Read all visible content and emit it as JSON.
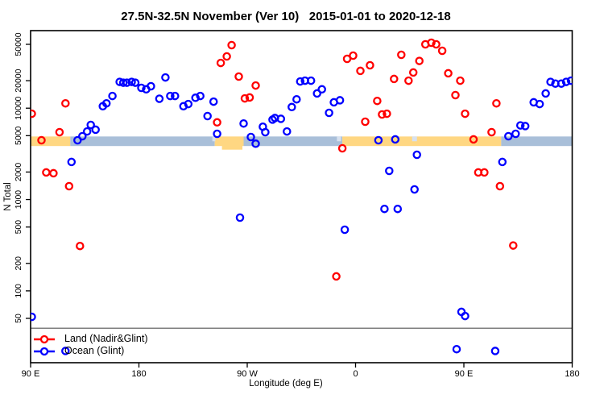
{
  "chart_data": {
    "type": "scatter",
    "title": "27.5N-32.5N November (Ver 10)   2015-01-01 to 2020-12-18",
    "xlabel": "Longitude (deg E)",
    "ylabel": "N Total",
    "x_axis": {
      "xlim": [
        90,
        540
      ],
      "note": "longitude in deg E increasing eastward from 90E, wrapping 180 -> 90W -> 0 -> 90E -> 180",
      "ticks": [
        {
          "lon": 90,
          "label": "90 E"
        },
        {
          "lon": 180,
          "label": "180"
        },
        {
          "lon": 270,
          "label": "90 W"
        },
        {
          "lon": 360,
          "label": "0"
        },
        {
          "lon": 450,
          "label": "90 E"
        },
        {
          "lon": 540,
          "label": "180"
        }
      ]
    },
    "y_axis": {
      "scale": "log10",
      "ticks": [
        50,
        100,
        200,
        500,
        1000,
        2000,
        5000,
        10000,
        20000,
        50000
      ],
      "range_approx": [
        16,
        70000
      ]
    },
    "reference_line": {
      "n_value": 39,
      "color": "#7f7f7f"
    },
    "band": {
      "description": "land/ocean strip drawn near N=5000",
      "n_top": 4900,
      "n_bottom": 3850,
      "land_color": "#FFD782",
      "ocean_color": "#A9BFD9",
      "coast_color": "#D7E1EF",
      "segments": [
        {
          "from": 90,
          "to": 123,
          "surface": "land"
        },
        {
          "from": 123,
          "to": 243,
          "surface": "ocean"
        },
        {
          "from": 243,
          "to": 267,
          "surface": "land"
        },
        {
          "from": 267,
          "to": 349,
          "surface": "ocean"
        },
        {
          "from": 349,
          "to": 481,
          "surface": "land"
        },
        {
          "from": 481,
          "to": 540,
          "surface": "ocean"
        }
      ],
      "south_blob": {
        "from": 249,
        "to": 266
      },
      "coast_marks": [
        {
          "from": 241,
          "to": 243.5
        },
        {
          "from": 344.5,
          "to": 348
        },
        {
          "from": 407,
          "to": 411
        }
      ]
    },
    "series": [
      {
        "name": "Land (Nadir&Glint)",
        "color": "#FF0000",
        "points": [
          [
            91,
            8700
          ],
          [
            99,
            4460
          ],
          [
            103,
            1980
          ],
          [
            109,
            1940
          ],
          [
            114,
            5460
          ],
          [
            119,
            11300
          ],
          [
            122,
            1400
          ],
          [
            131,
            310
          ],
          [
            245,
            7000
          ],
          [
            248,
            31300
          ],
          [
            253,
            36900
          ],
          [
            257,
            49000
          ],
          [
            263,
            22200
          ],
          [
            268,
            12800
          ],
          [
            272,
            13100
          ],
          [
            277,
            17700
          ],
          [
            344,
            144
          ],
          [
            349,
            3640
          ],
          [
            353,
            34700
          ],
          [
            358,
            37600
          ],
          [
            364,
            25600
          ],
          [
            368,
            7110
          ],
          [
            372,
            29500
          ],
          [
            378,
            12000
          ],
          [
            382,
            8530
          ],
          [
            386,
            8700
          ],
          [
            392,
            20900
          ],
          [
            398,
            38400
          ],
          [
            404,
            20000
          ],
          [
            408,
            24600
          ],
          [
            413,
            32900
          ],
          [
            418,
            50000
          ],
          [
            423,
            52100
          ],
          [
            427,
            50000
          ],
          [
            432,
            42500
          ],
          [
            437,
            24100
          ],
          [
            443,
            13900
          ],
          [
            447,
            20000
          ],
          [
            451,
            8700
          ],
          [
            458,
            4560
          ],
          [
            462,
            1980
          ],
          [
            467,
            1980
          ],
          [
            473,
            5460
          ],
          [
            477,
            11300
          ],
          [
            480,
            1400
          ],
          [
            491,
            314
          ]
        ]
      },
      {
        "name": "Ocean (Glint)",
        "color": "#0000FF",
        "points": [
          [
            91,
            52
          ],
          [
            119,
            22
          ],
          [
            124,
            2580
          ],
          [
            129,
            4460
          ],
          [
            133,
            4930
          ],
          [
            137,
            5560
          ],
          [
            140,
            6560
          ],
          [
            144,
            5810
          ],
          [
            150,
            10500
          ],
          [
            153,
            11300
          ],
          [
            158,
            13600
          ],
          [
            164,
            19400
          ],
          [
            167,
            19000
          ],
          [
            170,
            19000
          ],
          [
            174,
            19400
          ],
          [
            177,
            19000
          ],
          [
            182,
            16700
          ],
          [
            186,
            16100
          ],
          [
            190,
            17400
          ],
          [
            197,
            12700
          ],
          [
            202,
            21700
          ],
          [
            206,
            13600
          ],
          [
            210,
            13600
          ],
          [
            217,
            10500
          ],
          [
            221,
            11100
          ],
          [
            227,
            13000
          ],
          [
            231,
            13600
          ],
          [
            237,
            8200
          ],
          [
            242,
            11800
          ],
          [
            245,
            5240
          ],
          [
            264,
            634
          ],
          [
            267,
            6800
          ],
          [
            273,
            4830
          ],
          [
            277,
            4080
          ],
          [
            283,
            6270
          ],
          [
            285,
            5460
          ],
          [
            291,
            7500
          ],
          [
            293,
            7810
          ],
          [
            298,
            7650
          ],
          [
            303,
            5560
          ],
          [
            307,
            10300
          ],
          [
            311,
            12500
          ],
          [
            314,
            19600
          ],
          [
            318,
            20000
          ],
          [
            323,
            20000
          ],
          [
            328,
            14500
          ],
          [
            332,
            16100
          ],
          [
            338,
            8900
          ],
          [
            342,
            11600
          ],
          [
            347,
            12200
          ],
          [
            351,
            467
          ],
          [
            379,
            4460
          ],
          [
            384,
            790
          ],
          [
            388,
            2060
          ],
          [
            393,
            4560
          ],
          [
            395,
            790
          ],
          [
            409,
            1290
          ],
          [
            411,
            3090
          ],
          [
            444,
            23
          ],
          [
            448,
            59
          ],
          [
            451,
            53
          ],
          [
            476,
            22
          ],
          [
            482,
            2580
          ],
          [
            487,
            4930
          ],
          [
            493,
            5240
          ],
          [
            497,
            6470
          ],
          [
            501,
            6370
          ],
          [
            508,
            11600
          ],
          [
            513,
            11100
          ],
          [
            518,
            14500
          ],
          [
            522,
            19400
          ],
          [
            526,
            18600
          ],
          [
            531,
            18600
          ],
          [
            535,
            19400
          ],
          [
            539,
            20000
          ]
        ]
      }
    ],
    "legend": {
      "items": [
        "Land (Nadir&Glint)",
        "Ocean (Glint)"
      ]
    }
  }
}
